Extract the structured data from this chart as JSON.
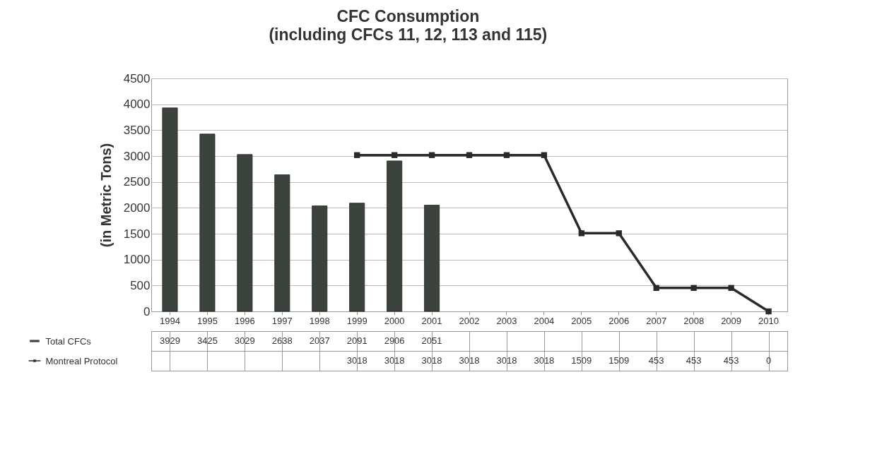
{
  "chart_data": {
    "type": "bar",
    "title": "CFC Consumption",
    "subtitle": "(including CFCs 11, 12, 113 and 115)",
    "ylabel": "(in Metric Tons)",
    "categories": [
      "1994",
      "1995",
      "1996",
      "1997",
      "1998",
      "1999",
      "2000",
      "2001",
      "2002",
      "2003",
      "2004",
      "2005",
      "2006",
      "2007",
      "2008",
      "2009",
      "2010"
    ],
    "series": [
      {
        "name": "Total CFCs",
        "color": "#3c423c",
        "values": [
          3929,
          3425,
          3029,
          2638,
          2037,
          2091,
          2906,
          2051,
          null,
          null,
          null,
          null,
          null,
          null,
          null,
          null,
          null
        ]
      },
      {
        "name": "Montreal Protocol",
        "type": "line",
        "color": "#2a2a2a",
        "values": [
          null,
          null,
          null,
          null,
          null,
          3018,
          3018,
          3018,
          3018,
          3018,
          3018,
          1509,
          1509,
          453,
          453,
          453,
          0
        ]
      }
    ],
    "ylim": [
      0,
      4500
    ],
    "yticks": [
      0,
      500,
      1000,
      1500,
      2000,
      2500,
      3000,
      3500,
      4000,
      4500
    ],
    "grid": "y",
    "marker": "square",
    "data_labels": true,
    "legend": "bottom left"
  }
}
